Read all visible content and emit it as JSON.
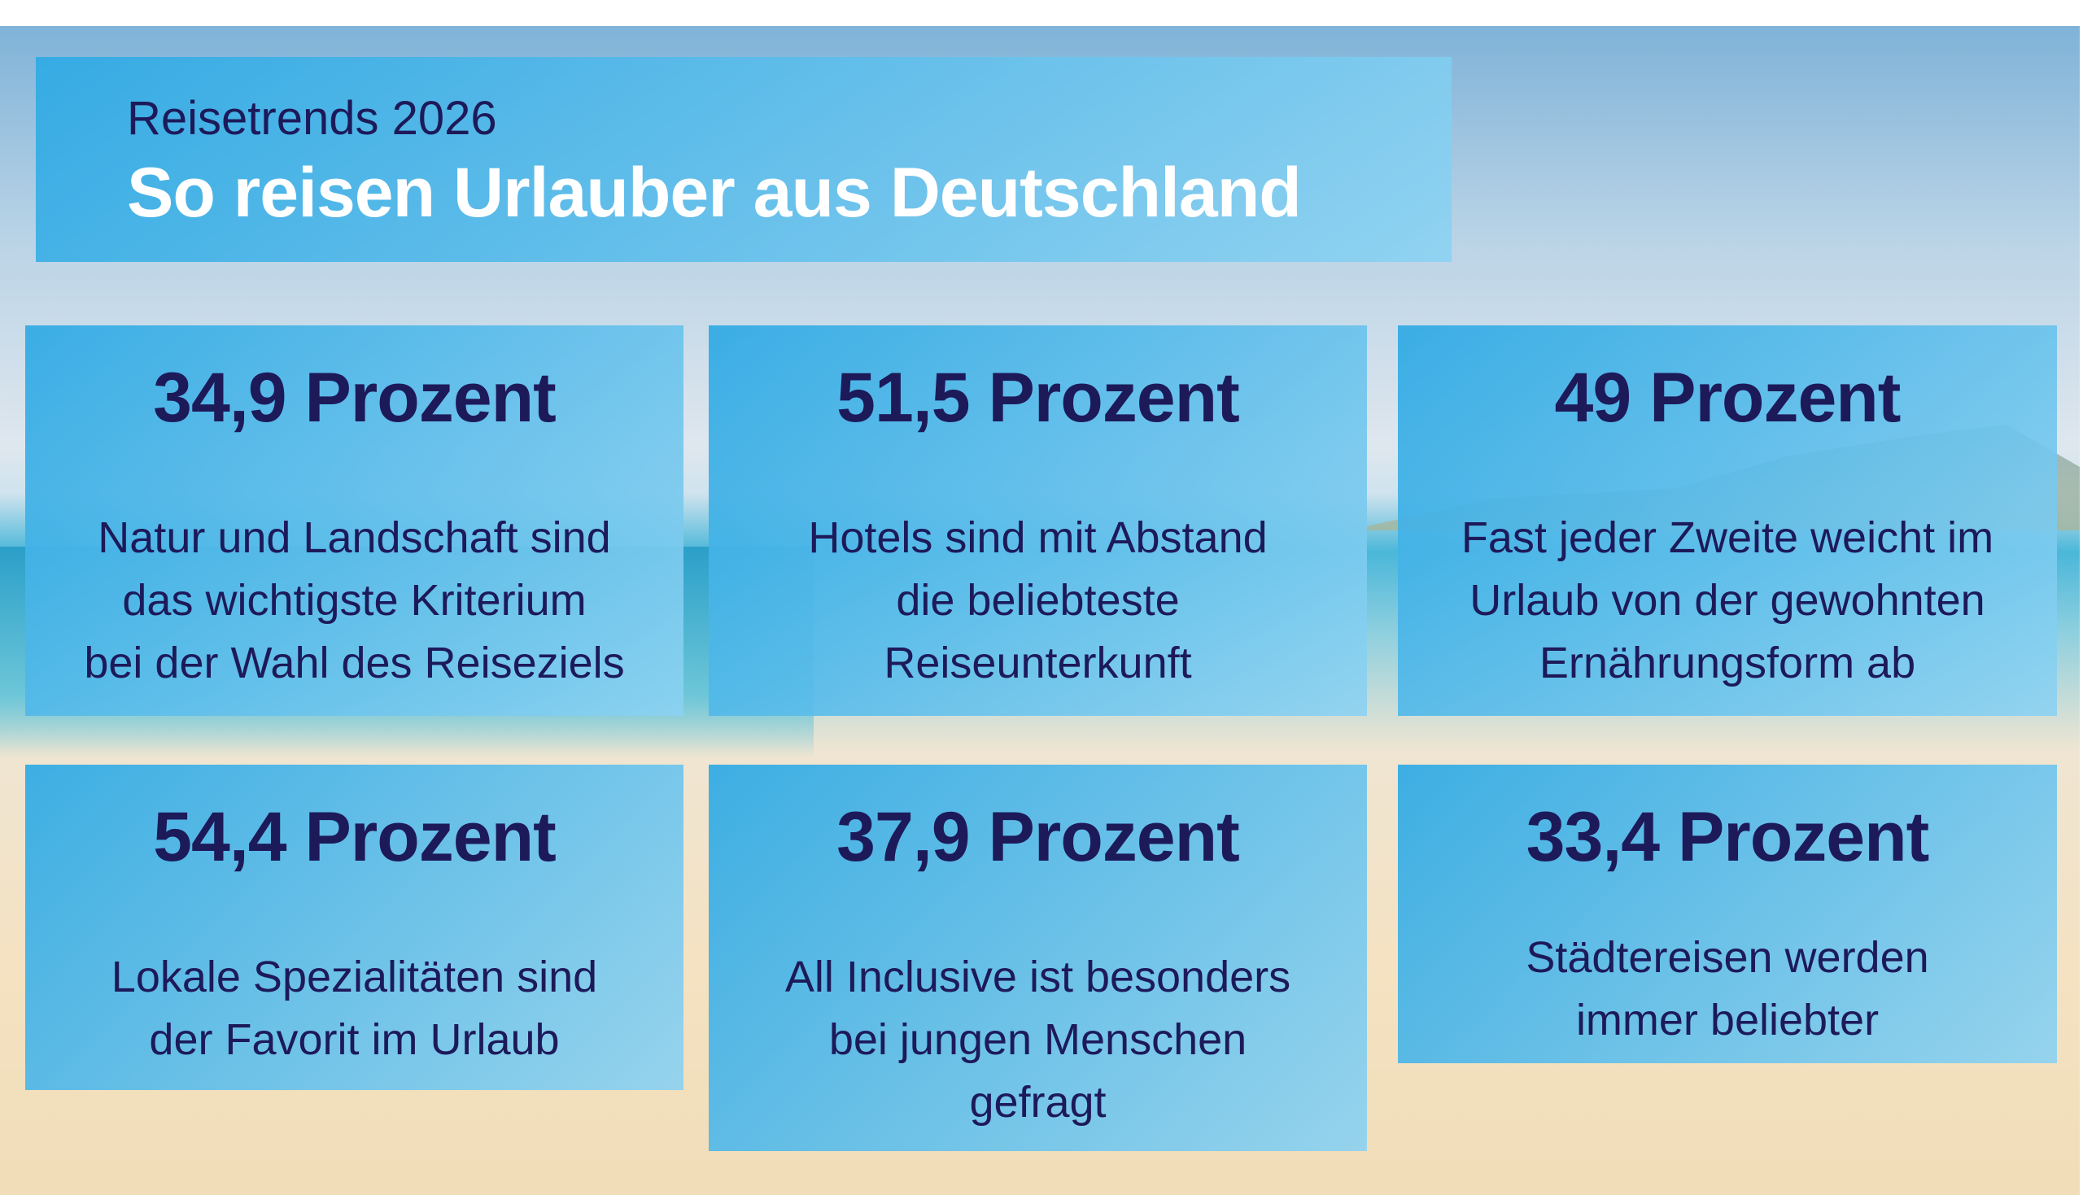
{
  "header": {
    "subtitle": "Reisetrends 2026",
    "title": "So reisen Urlauber aus Deutschland"
  },
  "cards": [
    {
      "value": "34,9 Prozent",
      "lines": [
        "Natur und Landschaft sind",
        "das wichtigste Kriterium",
        "bei der Wahl des Reiseziels"
      ]
    },
    {
      "value": "51,5 Prozent",
      "lines": [
        "Hotels sind mit Abstand",
        "die beliebteste",
        "Reiseunterkunft"
      ]
    },
    {
      "value": "49 Prozent",
      "lines": [
        "Fast jeder Zweite weicht im",
        "Urlaub von der gewohnten",
        "Ernährungsform ab"
      ]
    },
    {
      "value": "54,4 Prozent",
      "lines": [
        "Lokale Spezialitäten sind",
        "der Favorit im Urlaub"
      ]
    },
    {
      "value": "37,9 Prozent",
      "lines": [
        "All Inclusive ist besonders",
        "bei jungen Menschen",
        "gefragt"
      ]
    },
    {
      "value": "33,4 Prozent",
      "lines": [
        "Städtereisen werden",
        "immer beliebter"
      ]
    }
  ],
  "colors": {
    "navy": "#1d1a5a",
    "card_blue": "#30aae4"
  }
}
